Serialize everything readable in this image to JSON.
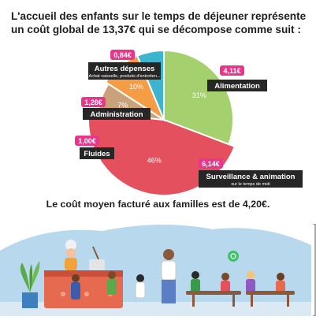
{
  "intro_text": "L'accueil des enfants sur le temps de déjeuner représente un coût global de 13,37€ qui se décompose comme suit :",
  "footer_text": "Le coût moyen facturé aux familles est de 4,20€.",
  "colors": {
    "alimentation": "#a4d16d",
    "surveillance": "#e4505d",
    "fluides": "#c9a27b",
    "administration": "#f59d45",
    "autres": "#3eb5cf",
    "pill": "#e8378b",
    "label_bg": "#262626"
  },
  "chart_data": {
    "type": "pie",
    "title": "",
    "slices": [
      {
        "key": "alimentation",
        "label": "Alimentation",
        "sublabel": "",
        "amount_label": "4,11€",
        "amount": 4.11,
        "percent_label": "31%",
        "percent": 31
      },
      {
        "key": "surveillance",
        "label": "Surveillance & animation",
        "sublabel": "sur le temps de midi",
        "amount_label": "6,14€",
        "amount": 6.14,
        "percent_label": "46%",
        "percent": 46
      },
      {
        "key": "fluides",
        "label": "Fluides",
        "sublabel": "",
        "amount_label": "1,00€",
        "amount": 1.0,
        "percent_label": "7%",
        "percent": 7
      },
      {
        "key": "administration",
        "label": "Administration",
        "sublabel": "",
        "amount_label": "1,28€",
        "amount": 1.28,
        "percent_label": "10%",
        "percent": 10
      },
      {
        "key": "autres",
        "label": "Autres dépenses",
        "sublabel": "Achat vaisselle, produits d'entretien...",
        "amount_label": "0,84€",
        "amount": 0.84,
        "percent_label": "6%",
        "percent": 6
      }
    ]
  },
  "illustration": {
    "icons": [
      "chef-figure",
      "serving-counter",
      "soup-pot",
      "potted-plant",
      "children-figures",
      "adult-figure",
      "dining-tables",
      "whatsapp-icon"
    ]
  }
}
